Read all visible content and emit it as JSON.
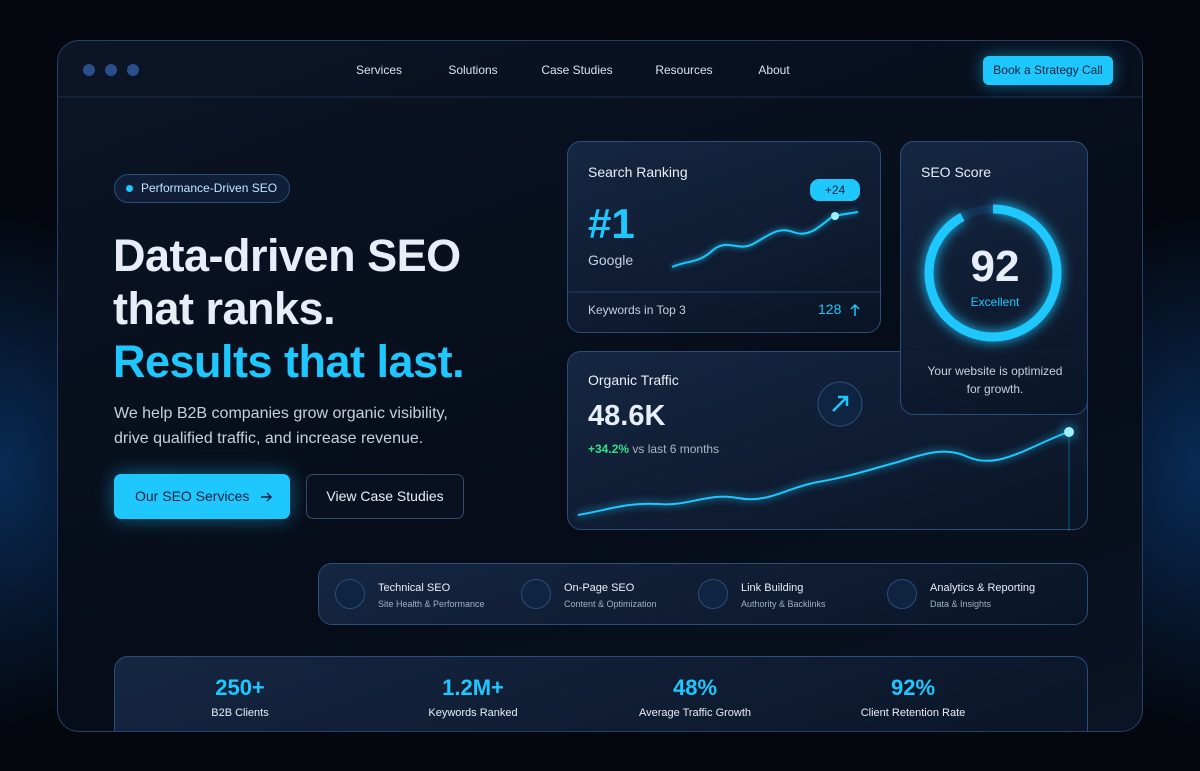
{
  "nav": {
    "links": [
      "Services",
      "Solutions",
      "Case Studies",
      "Resources",
      "About"
    ],
    "cta": "Book a Strategy Call"
  },
  "hero": {
    "badge": "Performance-Driven SEO",
    "title_lines": [
      "Data-driven SEO",
      "that ranks."
    ],
    "highlight": "Results that last.",
    "description": "We help B2B companies grow organic visibility, drive qualified traffic, and increase revenue.",
    "primary_button": "Our SEO Services",
    "secondary_button": "View Case Studies"
  },
  "ranking_card": {
    "title": "Search Ranking",
    "rank": "#1",
    "engine": "Google",
    "badge": "+24",
    "footer_label": "Keywords in Top 3",
    "footer_value": "128"
  },
  "score_card": {
    "title": "SEO Score",
    "score": "92",
    "rating": "Excellent",
    "caption": "Your website is optimized for growth."
  },
  "traffic_card": {
    "title": "Organic Traffic",
    "value": "48.6K",
    "change": "+34.2%",
    "period": "vs last 6 months"
  },
  "services": [
    {
      "name": "Technical SEO",
      "sub": "Site Health & Performance"
    },
    {
      "name": "On-Page SEO",
      "sub": "Content & Optimization"
    },
    {
      "name": "Link Building",
      "sub": "Authority & Backlinks"
    },
    {
      "name": "Analytics & Reporting",
      "sub": "Data & Insights"
    }
  ],
  "stats": [
    {
      "value": "250+",
      "label": "B2B Clients"
    },
    {
      "value": "1.2M+",
      "label": "Keywords Ranked"
    },
    {
      "value": "48%",
      "label": "Average Traffic Growth"
    },
    {
      "value": "92%",
      "label": "Client Retention Rate"
    }
  ]
}
